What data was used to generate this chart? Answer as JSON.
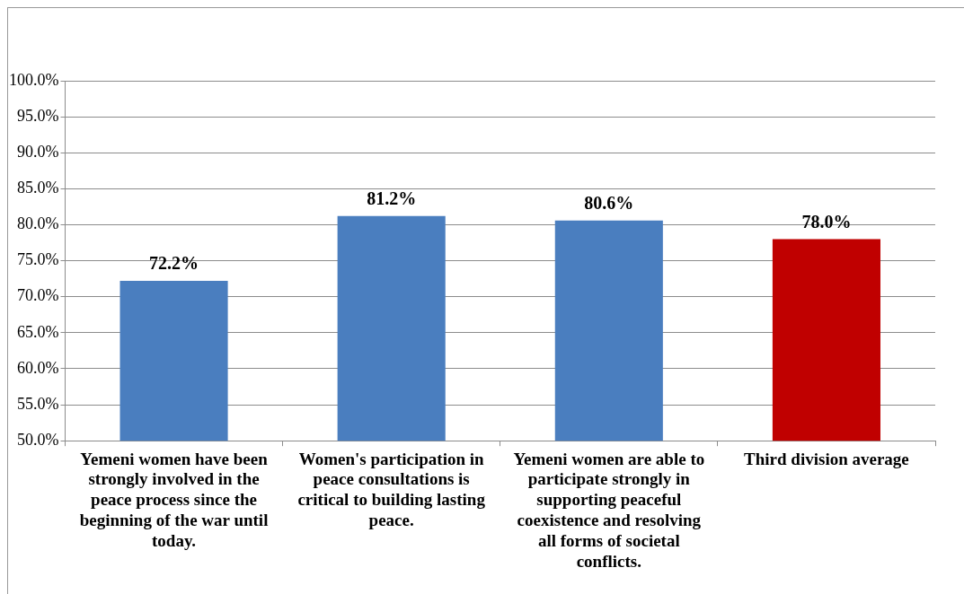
{
  "chart_data": {
    "type": "bar",
    "categories": [
      "Yemeni women have been strongly involved in the peace process since the beginning of the war until today.",
      "Women's participation in peace consultations is critical to building lasting peace.",
      "Yemeni women are able to participate strongly in supporting peaceful coexistence and resolving all forms of societal conflicts.",
      "Third division average"
    ],
    "values": [
      72.2,
      81.2,
      80.6,
      78.0
    ],
    "value_labels": [
      "72.2%",
      "81.2%",
      "80.6%",
      "78.0%"
    ],
    "colors": [
      "#4a7ebf",
      "#4a7ebf",
      "#4a7ebf",
      "#c00000"
    ],
    "ylim": [
      50,
      100
    ],
    "yticks": [
      {
        "value": 50,
        "label": "50.0%"
      },
      {
        "value": 55,
        "label": "55.0%"
      },
      {
        "value": 60,
        "label": "60.0%"
      },
      {
        "value": 65,
        "label": "65.0%"
      },
      {
        "value": 70,
        "label": "70.0%"
      },
      {
        "value": 75,
        "label": "75.0%"
      },
      {
        "value": 80,
        "label": "80.0%"
      },
      {
        "value": 85,
        "label": "85.0%"
      },
      {
        "value": 90,
        "label": "90.0%"
      },
      {
        "value": 95,
        "label": "95.0%"
      },
      {
        "value": 100,
        "label": "100.0%"
      }
    ],
    "grid": "y"
  }
}
